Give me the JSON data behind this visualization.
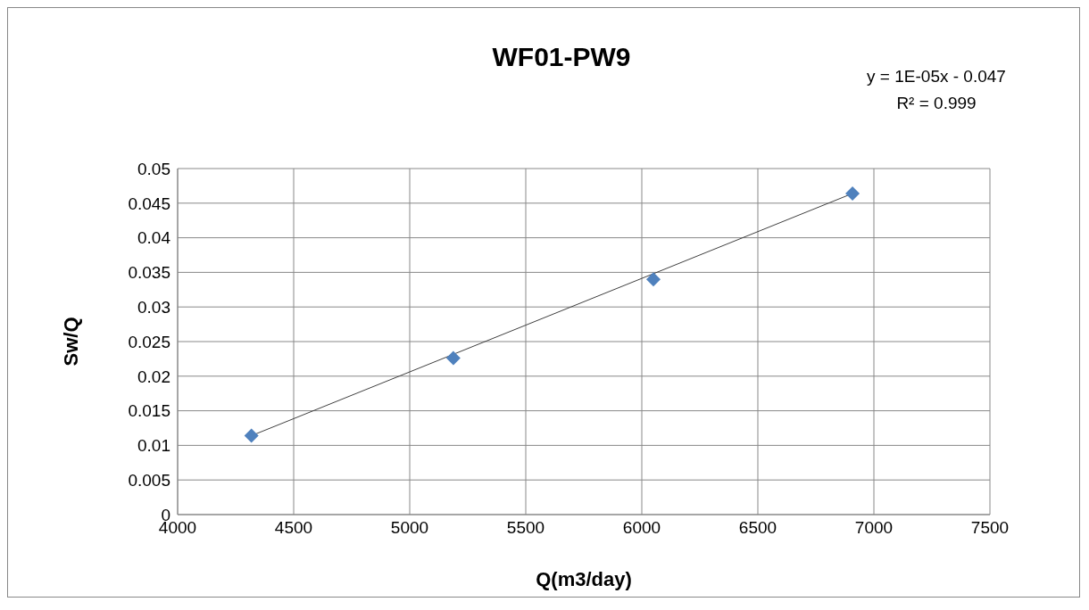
{
  "chart_data": {
    "type": "scatter",
    "title": "WF01-PW9",
    "xlabel": "Q(m3/day)",
    "ylabel": "Sw/Q",
    "series": [
      {
        "color": "#4f81bd",
        "x": [
          4318,
          5188,
          6050,
          6908
        ],
        "values": [
          0.0114,
          0.0226,
          0.034,
          0.0464
        ],
        "marker": "diamond"
      },
      {
        "type": "line",
        "color": "#404040",
        "x": [
          4318,
          6908
        ],
        "values": [
          0.0114,
          0.0464
        ],
        "marker": "none"
      }
    ],
    "xlim": [
      4000,
      7500
    ],
    "xticks": [
      4000,
      4500,
      5000,
      5500,
      6000,
      6500,
      7000,
      7500
    ],
    "ylim": [
      0,
      0.05
    ],
    "yticks": [
      0,
      0.005,
      0.01,
      0.015,
      0.02,
      0.025,
      0.03,
      0.035,
      0.04,
      0.045,
      0.05
    ],
    "grid": true,
    "annotations": [
      "y = 1E-05x - 0.047",
      "R² = 0.999"
    ]
  }
}
